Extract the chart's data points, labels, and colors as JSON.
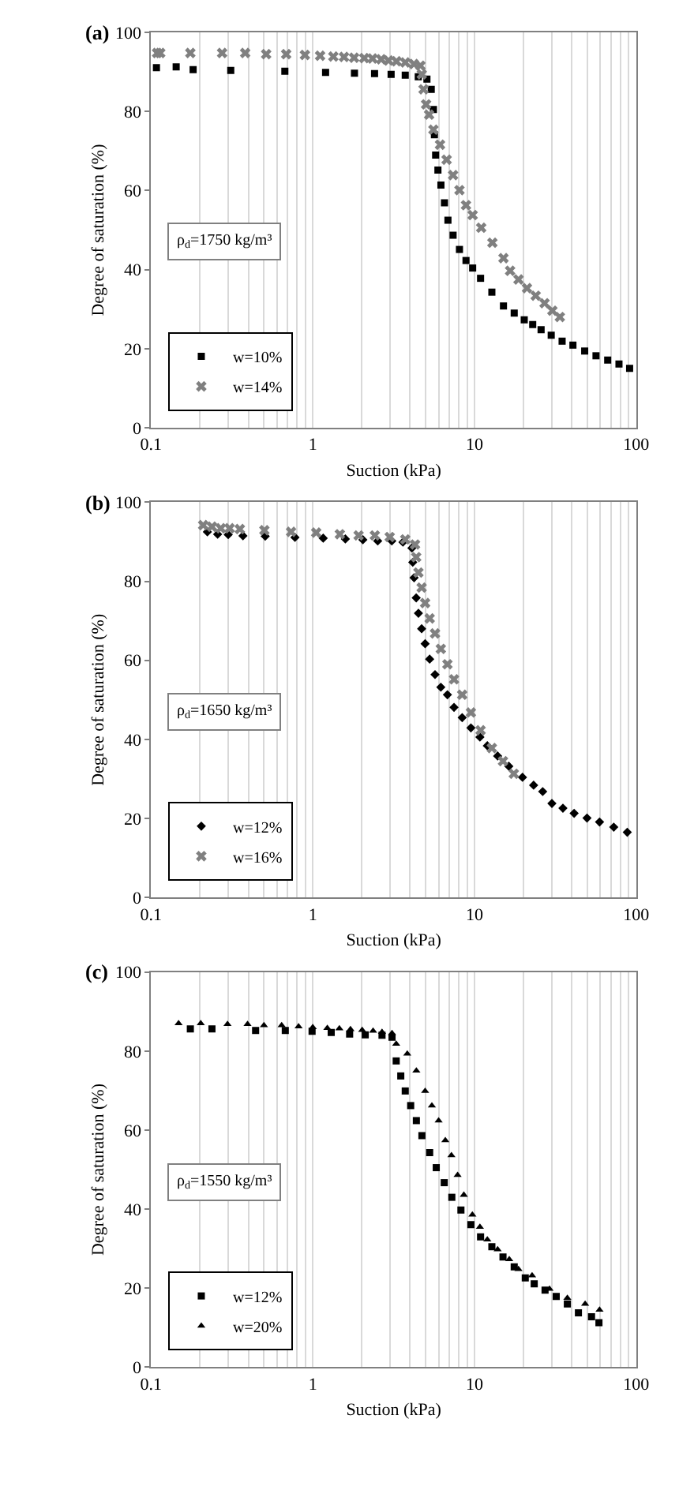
{
  "chart_data": [
    {
      "type": "scatter",
      "title": "(a)",
      "xlabel": "Suction (kPa)",
      "ylabel": "Degree of saturation (%)",
      "log": "x",
      "grid": "x",
      "legend": "bottom left",
      "annotations": [
        "ρ$_{d}$=1750 kg/m³"
      ],
      "xlim": [
        0.1,
        100
      ],
      "ylim": [
        0,
        100
      ],
      "yticks": [
        0,
        20,
        40,
        60,
        80,
        100
      ],
      "xticks": [
        0.1,
        {
          "value": 0.2,
          "label": null
        },
        {
          "value": 0.3,
          "label": null
        },
        {
          "value": 0.4,
          "label": null
        },
        {
          "value": 0.5,
          "label": null
        },
        {
          "value": 0.6,
          "label": null
        },
        {
          "value": 0.7,
          "label": null
        },
        {
          "value": 0.8,
          "label": null
        },
        {
          "value": 0.9,
          "label": null
        },
        1,
        {
          "value": 2,
          "label": null
        },
        {
          "value": 3,
          "label": null
        },
        {
          "value": 4,
          "label": null
        },
        {
          "value": 5,
          "label": null
        },
        {
          "value": 6,
          "label": null
        },
        {
          "value": 7,
          "label": null
        },
        {
          "value": 8,
          "label": null
        },
        {
          "value": 9,
          "label": null
        },
        10,
        {
          "value": 20,
          "label": null
        },
        {
          "value": 30,
          "label": null
        },
        {
          "value": 40,
          "label": null
        },
        {
          "value": 50,
          "label": null
        },
        {
          "value": 60,
          "label": null
        },
        {
          "value": 70,
          "label": null
        },
        {
          "value": 80,
          "label": null
        },
        {
          "value": 90,
          "label": null
        },
        100
      ],
      "series": [
        {
          "name": "w=10%",
          "color": "#000000",
          "marker": "square",
          "x": [
            0.108,
            0.143,
            0.182,
            0.311,
            0.672,
            1.2,
            1.81,
            2.41,
            3.05,
            3.73,
            4.49,
            5.08,
            5.4,
            5.57,
            5.65,
            5.75,
            5.94,
            6.2,
            6.52,
            6.85,
            7.37,
            8.07,
            8.86,
            9.74,
            10.9,
            12.8,
            15.1,
            17.6,
            20.3,
            22.9,
            25.8,
            29.8,
            34.8,
            40.6,
            48.0,
            56.4,
            66.6,
            78.2,
            91.0
          ],
          "values": [
            91.1,
            91.3,
            90.6,
            90.4,
            90.2,
            89.9,
            89.7,
            89.6,
            89.4,
            89.2,
            88.8,
            88.2,
            85.6,
            80.5,
            74.1,
            69.0,
            65.2,
            61.4,
            56.9,
            52.5,
            48.7,
            45.1,
            42.3,
            40.4,
            37.8,
            34.3,
            30.8,
            29.0,
            27.3,
            26.1,
            24.8,
            23.4,
            21.9,
            20.9,
            19.4,
            18.2,
            17.1,
            16.1,
            15.0
          ]
        },
        {
          "name": "w=14%",
          "color": "#808080",
          "marker": "cross",
          "x": [
            0.109,
            0.114,
            0.175,
            0.275,
            0.382,
            0.515,
            0.685,
            0.894,
            1.11,
            1.34,
            1.56,
            1.8,
            2.08,
            2.34,
            2.65,
            2.94,
            3.29,
            3.73,
            4.22,
            4.63,
            4.72,
            4.84,
            5.02,
            5.24,
            5.57,
            6.12,
            6.72,
            7.37,
            8.07,
            8.86,
            9.74,
            11.0,
            12.9,
            15.1,
            16.6,
            18.7,
            21.1,
            23.9,
            27.1,
            30.3,
            33.7
          ],
          "values": [
            94.8,
            94.8,
            94.8,
            94.8,
            94.8,
            94.5,
            94.5,
            94.3,
            94.1,
            93.9,
            93.8,
            93.6,
            93.5,
            93.4,
            93.2,
            92.9,
            92.7,
            92.4,
            92.0,
            91.6,
            89.4,
            85.6,
            81.8,
            79.2,
            75.4,
            71.6,
            67.8,
            63.9,
            60.1,
            56.3,
            53.8,
            50.6,
            46.8,
            42.9,
            39.7,
            37.5,
            35.3,
            33.4,
            31.5,
            29.6,
            28.0
          ]
        }
      ]
    },
    {
      "type": "scatter",
      "title": "(b)",
      "xlabel": "Suction (kPa)",
      "ylabel": "Degree of saturation (%)",
      "log": "x",
      "grid": "x",
      "legend": "bottom left",
      "annotations": [
        "ρ$_{d}$=1650 kg/m³"
      ],
      "xlim": [
        0.1,
        100
      ],
      "ylim": [
        0,
        100
      ],
      "yticks": [
        0,
        20,
        40,
        60,
        80,
        100
      ],
      "xticks": [
        0.1,
        {
          "value": 0.2,
          "label": null
        },
        {
          "value": 0.3,
          "label": null
        },
        {
          "value": 0.4,
          "label": null
        },
        {
          "value": 0.5,
          "label": null
        },
        {
          "value": 0.6,
          "label": null
        },
        {
          "value": 0.7,
          "label": null
        },
        {
          "value": 0.8,
          "label": null
        },
        {
          "value": 0.9,
          "label": null
        },
        1,
        {
          "value": 2,
          "label": null
        },
        {
          "value": 3,
          "label": null
        },
        {
          "value": 4,
          "label": null
        },
        {
          "value": 5,
          "label": null
        },
        {
          "value": 6,
          "label": null
        },
        {
          "value": 7,
          "label": null
        },
        {
          "value": 8,
          "label": null
        },
        {
          "value": 9,
          "label": null
        },
        10,
        {
          "value": 20,
          "label": null
        },
        {
          "value": 30,
          "label": null
        },
        {
          "value": 40,
          "label": null
        },
        {
          "value": 50,
          "label": null
        },
        {
          "value": 60,
          "label": null
        },
        {
          "value": 70,
          "label": null
        },
        {
          "value": 80,
          "label": null
        },
        {
          "value": 90,
          "label": null
        },
        100
      ],
      "series": [
        {
          "name": "w=12%",
          "color": "#000000",
          "marker": "diamond",
          "x": [
            0.223,
            0.258,
            0.3,
            0.37,
            0.508,
            0.776,
            1.16,
            1.59,
            2.04,
            2.52,
            3.08,
            3.61,
            4.1,
            4.15,
            4.23,
            4.36,
            4.5,
            4.71,
            4.95,
            5.28,
            5.7,
            6.19,
            6.8,
            7.47,
            8.39,
            9.5,
            10.8,
            12.0,
            13.9,
            16.3,
            19.8,
            23.2,
            26.4,
            30.1,
            35.2,
            41.3,
            49.6,
            59.3,
            72.6,
            88.0
          ],
          "values": [
            92.5,
            91.9,
            91.8,
            91.5,
            91.4,
            91.1,
            90.9,
            90.7,
            90.5,
            90.2,
            90.2,
            89.9,
            88.4,
            84.8,
            80.9,
            75.8,
            71.9,
            68.0,
            64.2,
            60.3,
            56.4,
            53.2,
            51.3,
            48.1,
            45.5,
            42.9,
            40.6,
            38.4,
            35.8,
            33.2,
            30.4,
            28.4,
            26.8,
            23.8,
            22.6,
            21.3,
            20.1,
            19.1,
            17.8,
            16.5
          ]
        },
        {
          "name": "w=16%",
          "color": "#808080",
          "marker": "cross",
          "x": [
            0.21,
            0.238,
            0.27,
            0.306,
            0.354,
            0.502,
            0.734,
            1.05,
            1.47,
            1.92,
            2.42,
            2.99,
            3.73,
            4.29,
            4.36,
            4.5,
            4.71,
            4.95,
            5.28,
            5.7,
            6.19,
            6.8,
            7.47,
            8.39,
            9.5,
            10.9,
            12.8,
            15.0,
            17.5
          ],
          "values": [
            94.2,
            93.8,
            93.4,
            93.4,
            93.2,
            92.9,
            92.5,
            92.3,
            91.9,
            91.6,
            91.6,
            91.2,
            90.6,
            89.3,
            86.1,
            82.2,
            78.4,
            74.5,
            70.6,
            66.8,
            62.9,
            59.0,
            55.2,
            51.3,
            46.8,
            42.3,
            37.8,
            34.5,
            31.3
          ]
        }
      ]
    },
    {
      "type": "scatter",
      "title": "(c)",
      "xlabel": "Suction (kPa)",
      "ylabel": "Degree of saturation (%)",
      "log": "x",
      "grid": "x",
      "legend": "bottom left",
      "annotations": [
        "ρ$_{d}$=1550 kg/m³"
      ],
      "xlim": [
        0.1,
        100
      ],
      "ylim": [
        0,
        100
      ],
      "yticks": [
        0,
        20,
        40,
        60,
        80,
        100
      ],
      "xticks": [
        0.1,
        {
          "value": 0.2,
          "label": null
        },
        {
          "value": 0.3,
          "label": null
        },
        {
          "value": 0.4,
          "label": null
        },
        {
          "value": 0.5,
          "label": null
        },
        {
          "value": 0.6,
          "label": null
        },
        {
          "value": 0.7,
          "label": null
        },
        {
          "value": 0.8,
          "label": null
        },
        {
          "value": 0.9,
          "label": null
        },
        1,
        {
          "value": 2,
          "label": null
        },
        {
          "value": 3,
          "label": null
        },
        {
          "value": 4,
          "label": null
        },
        {
          "value": 5,
          "label": null
        },
        {
          "value": 6,
          "label": null
        },
        {
          "value": 7,
          "label": null
        },
        {
          "value": 8,
          "label": null
        },
        {
          "value": 9,
          "label": null
        },
        10,
        {
          "value": 20,
          "label": null
        },
        {
          "value": 30,
          "label": null
        },
        {
          "value": 40,
          "label": null
        },
        {
          "value": 50,
          "label": null
        },
        {
          "value": 60,
          "label": null
        },
        {
          "value": 70,
          "label": null
        },
        {
          "value": 80,
          "label": null
        },
        {
          "value": 90,
          "label": null
        },
        100
      ],
      "series": [
        {
          "name": "w=12%",
          "color": "#000000",
          "marker": "square",
          "x": [
            0.175,
            0.238,
            0.443,
            0.676,
            0.99,
            1.3,
            1.69,
            2.11,
            2.68,
            3.09,
            3.28,
            3.5,
            3.73,
            4.03,
            4.37,
            4.73,
            5.28,
            5.8,
            6.5,
            7.24,
            8.24,
            9.5,
            10.9,
            12.8,
            15.0,
            17.6,
            20.6,
            23.4,
            27.3,
            32.0,
            37.5,
            43.9,
            52.9,
            58.8
          ],
          "values": [
            85.6,
            85.6,
            85.2,
            85.2,
            85.0,
            84.7,
            84.3,
            84.1,
            84.0,
            83.5,
            77.5,
            73.7,
            69.9,
            66.2,
            62.4,
            58.6,
            54.3,
            50.5,
            46.7,
            43.0,
            39.8,
            36.1,
            33.0,
            30.5,
            27.9,
            25.4,
            22.6,
            21.1,
            19.5,
            17.9,
            16.0,
            13.8,
            12.8,
            11.3
          ]
        },
        {
          "name": "w=20%",
          "color": "#000000",
          "marker": "triangle",
          "x": [
            0.148,
            0.203,
            0.297,
            0.395,
            0.499,
            0.642,
            0.817,
            1.0,
            1.23,
            1.46,
            1.71,
            2.02,
            2.36,
            2.68,
            3.09,
            3.28,
            3.84,
            4.37,
            4.95,
            5.45,
            6.0,
            6.6,
            7.2,
            7.86,
            8.59,
            9.7,
            10.8,
            12.0,
            13.9,
            16.4,
            18.7,
            22.7,
            29.1,
            37.5,
            48.3,
            59.3
          ],
          "values": [
            87.0,
            87.0,
            86.8,
            86.8,
            86.5,
            86.5,
            86.2,
            86.0,
            85.8,
            85.7,
            85.5,
            85.3,
            85.1,
            84.8,
            84.5,
            81.8,
            79.3,
            75.0,
            69.9,
            66.2,
            62.4,
            57.4,
            53.6,
            48.6,
            43.6,
            38.6,
            35.5,
            32.3,
            29.8,
            27.3,
            24.8,
            23.2,
            19.8,
            17.5,
            16.0,
            14.5
          ]
        }
      ]
    }
  ]
}
